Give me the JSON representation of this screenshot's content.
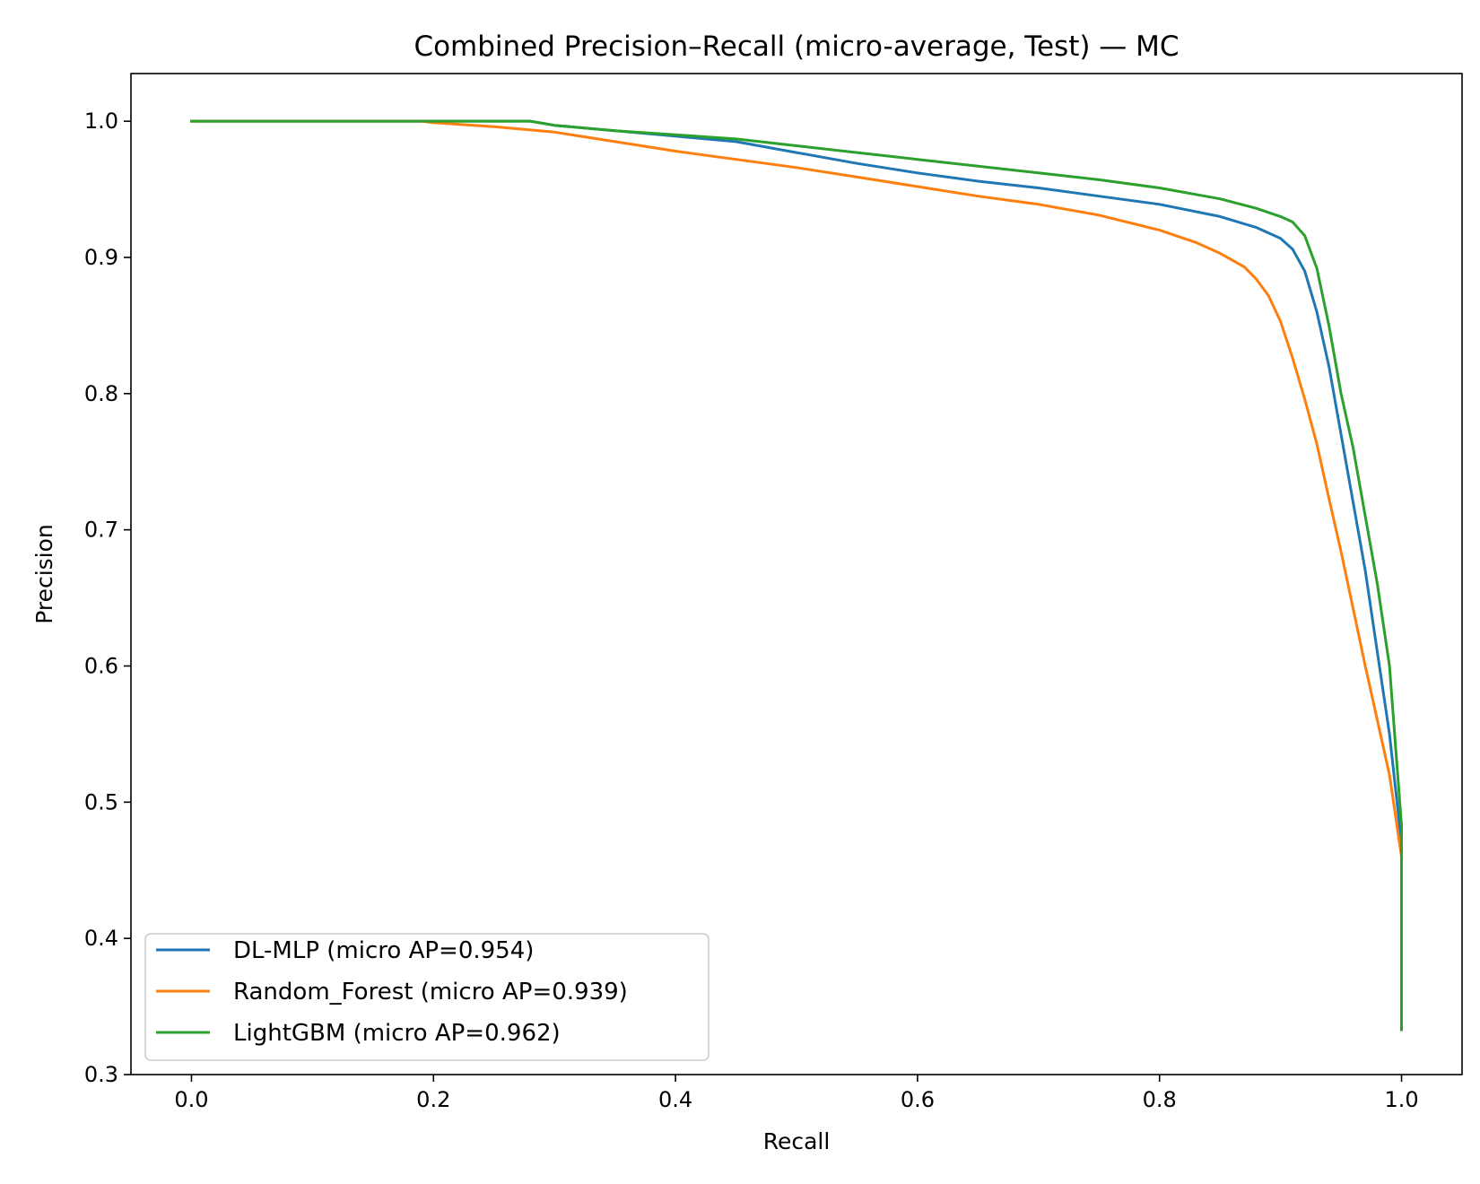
{
  "chart_data": {
    "type": "line",
    "title": "Combined Precision–Recall (micro-average, Test) — MC",
    "xlabel": "Recall",
    "ylabel": "Precision",
    "xlim": [
      -0.05,
      1.05
    ],
    "ylim": [
      0.3,
      1.035
    ],
    "xticks": [
      0.0,
      0.2,
      0.4,
      0.6,
      0.8,
      1.0
    ],
    "xtick_labels": [
      "0.0",
      "0.2",
      "0.4",
      "0.6",
      "0.8",
      "1.0"
    ],
    "yticks": [
      0.3,
      0.4,
      0.5,
      0.6,
      0.7,
      0.8,
      0.9,
      1.0
    ],
    "ytick_labels": [
      "0.3",
      "0.4",
      "0.5",
      "0.6",
      "0.7",
      "0.8",
      "0.9",
      "1.0"
    ],
    "grid": false,
    "legend_position": "lower-left",
    "series": [
      {
        "name": "DL-MLP (micro AP=0.954)",
        "color": "#1f77b4",
        "x": [
          0.0,
          0.1,
          0.2,
          0.28,
          0.3,
          0.35,
          0.4,
          0.45,
          0.5,
          0.55,
          0.6,
          0.65,
          0.7,
          0.75,
          0.8,
          0.85,
          0.88,
          0.9,
          0.91,
          0.92,
          0.93,
          0.94,
          0.95,
          0.96,
          0.97,
          0.98,
          0.99,
          1.0,
          1.0
        ],
        "y": [
          1.0,
          1.0,
          1.0,
          1.0,
          0.997,
          0.993,
          0.989,
          0.985,
          0.977,
          0.969,
          0.962,
          0.956,
          0.951,
          0.945,
          0.939,
          0.93,
          0.922,
          0.914,
          0.906,
          0.89,
          0.86,
          0.82,
          0.77,
          0.72,
          0.67,
          0.61,
          0.55,
          0.47,
          0.333
        ]
      },
      {
        "name": "Random_Forest (micro AP=0.939)",
        "color": "#ff7f0e",
        "x": [
          0.0,
          0.1,
          0.19,
          0.2,
          0.25,
          0.3,
          0.35,
          0.4,
          0.45,
          0.5,
          0.55,
          0.6,
          0.65,
          0.7,
          0.75,
          0.8,
          0.83,
          0.85,
          0.87,
          0.88,
          0.89,
          0.9,
          0.91,
          0.92,
          0.93,
          0.94,
          0.95,
          0.96,
          0.97,
          0.98,
          0.99,
          1.0,
          1.0
        ],
        "y": [
          1.0,
          1.0,
          1.0,
          0.999,
          0.996,
          0.992,
          0.985,
          0.978,
          0.972,
          0.966,
          0.959,
          0.952,
          0.945,
          0.939,
          0.931,
          0.92,
          0.911,
          0.903,
          0.893,
          0.884,
          0.872,
          0.853,
          0.826,
          0.796,
          0.763,
          0.723,
          0.684,
          0.642,
          0.6,
          0.56,
          0.52,
          0.46,
          0.46
        ]
      },
      {
        "name": "LightGBM (micro AP=0.962)",
        "color": "#2ca02c",
        "x": [
          0.0,
          0.1,
          0.2,
          0.28,
          0.3,
          0.35,
          0.4,
          0.45,
          0.5,
          0.55,
          0.6,
          0.65,
          0.7,
          0.75,
          0.8,
          0.85,
          0.88,
          0.9,
          0.91,
          0.92,
          0.93,
          0.94,
          0.95,
          0.96,
          0.97,
          0.98,
          0.99,
          1.0,
          1.0
        ],
        "y": [
          1.0,
          1.0,
          1.0,
          1.0,
          0.997,
          0.993,
          0.99,
          0.987,
          0.982,
          0.977,
          0.972,
          0.967,
          0.962,
          0.957,
          0.951,
          0.943,
          0.936,
          0.93,
          0.926,
          0.916,
          0.892,
          0.85,
          0.8,
          0.76,
          0.71,
          0.66,
          0.6,
          0.483,
          0.333
        ]
      }
    ]
  }
}
